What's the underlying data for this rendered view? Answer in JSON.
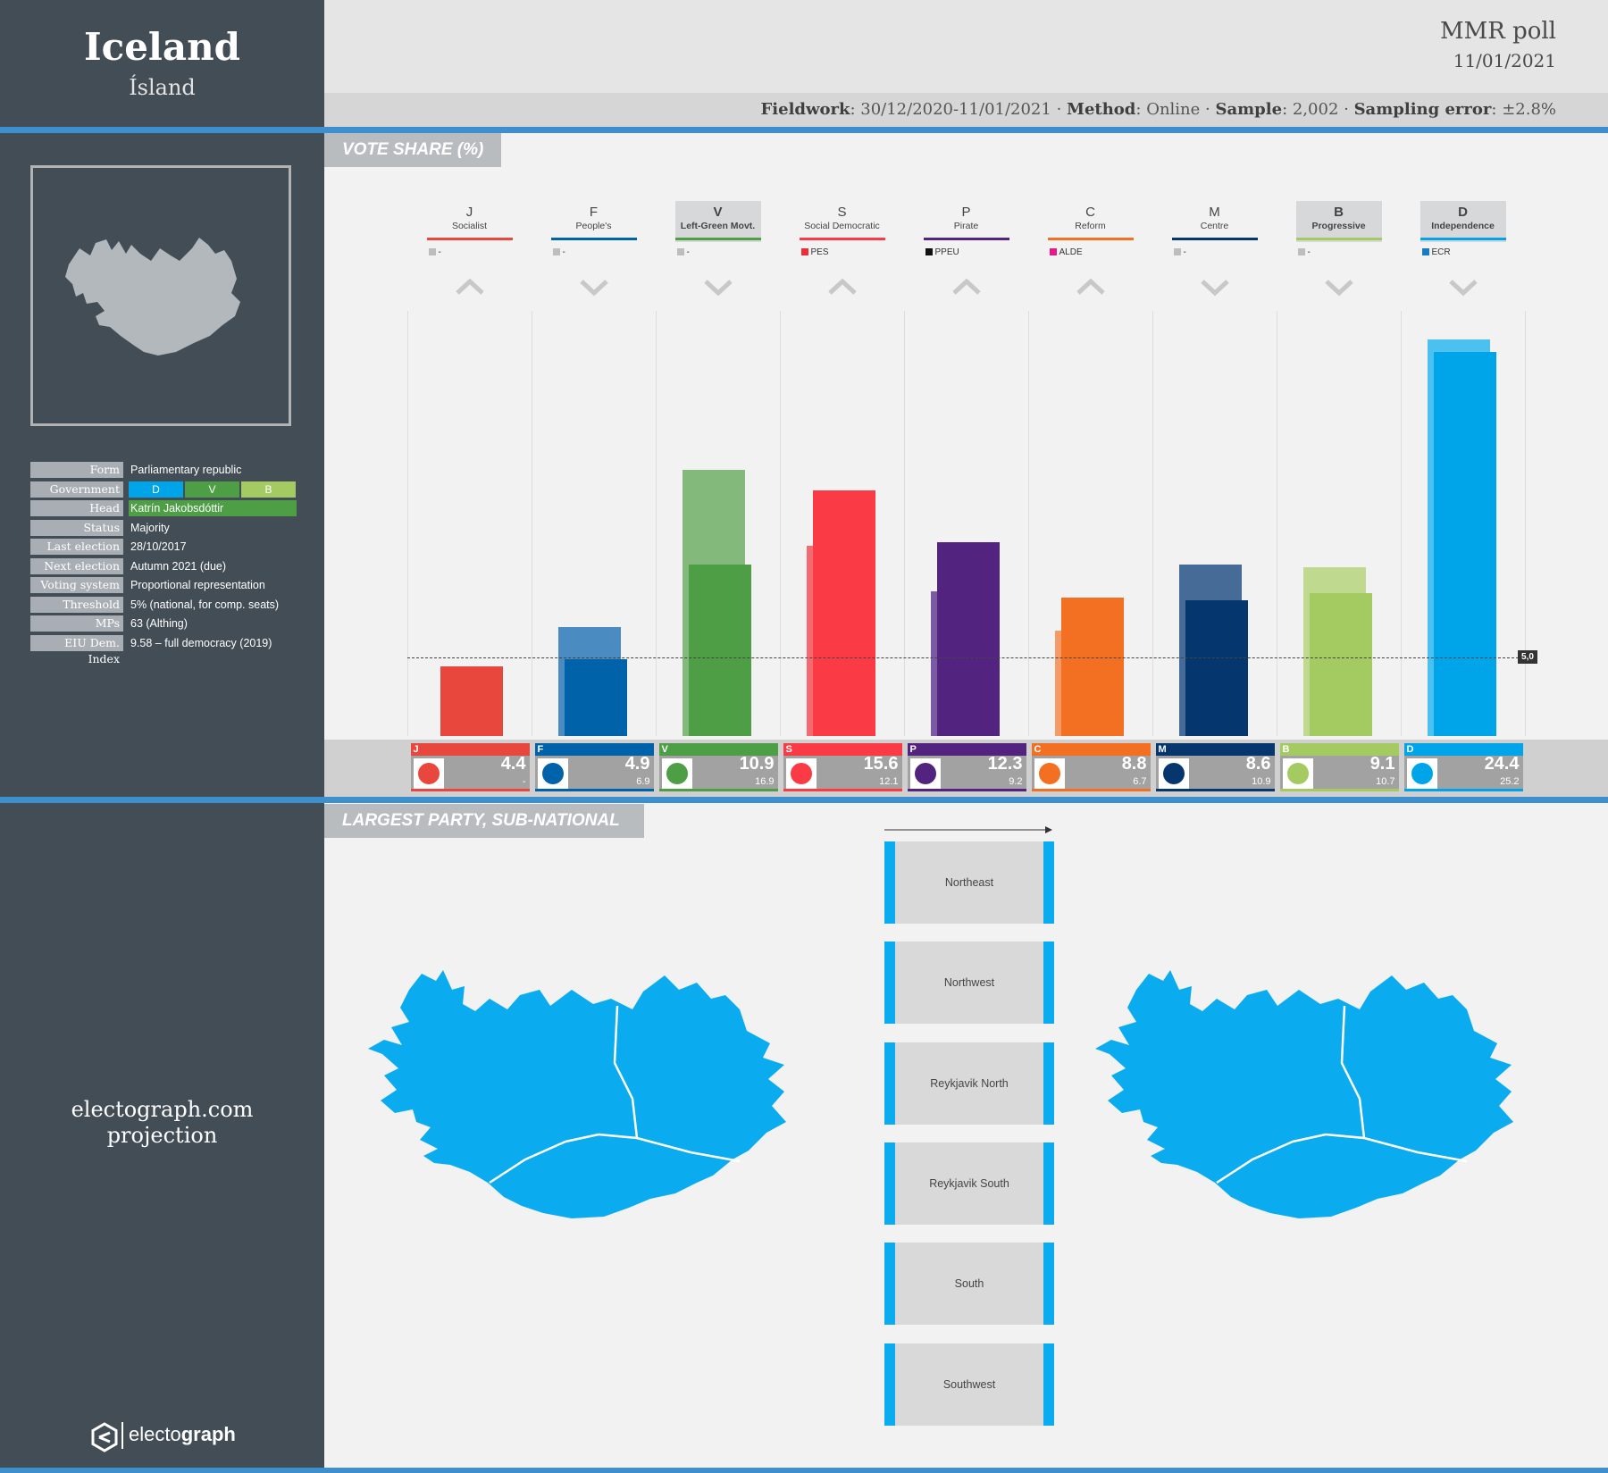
{
  "country": {
    "name": "Iceland",
    "native_name": "Ísland"
  },
  "info": {
    "rows": [
      {
        "key": "Form",
        "value": "Parliamentary republic"
      },
      {
        "key": "Government",
        "value": ""
      },
      {
        "key": "Head",
        "value": "Katrín Jakobsdóttir"
      },
      {
        "key": "Status",
        "value": "Majority"
      },
      {
        "key": "Last election",
        "value": "28/10/2017"
      },
      {
        "key": "Next election",
        "value": "Autumn 2021 (due)"
      },
      {
        "key": "Voting system",
        "value": "Proportional representation"
      },
      {
        "key": "Threshold",
        "value": "5% (national, for comp. seats)"
      },
      {
        "key": "MPs",
        "value": "63 (Althing)"
      },
      {
        "key": "EIU Dem. Index",
        "value": "9.58 – full democracy (2019)"
      }
    ],
    "government_parties": [
      {
        "label": "D",
        "color": "#00a5e9"
      },
      {
        "label": "V",
        "color": "#4e9e45"
      },
      {
        "label": "B",
        "color": "#a4cb62"
      }
    ],
    "head_color": "#4e9e45"
  },
  "footer": {
    "projection_line1": "electograph.com",
    "projection_line2": "projection",
    "brand_light": "electo",
    "brand_bold": "graph"
  },
  "header": {
    "pollster": "MMR",
    "poll_word": "poll",
    "date": "11/01/2021",
    "fieldwork_label": "Fieldwork",
    "fieldwork": "30/12/2020-11/01/2021",
    "method_label": "Method",
    "method": "Online",
    "sample_label": "Sample",
    "sample": "2,002",
    "error_label": "Sampling error",
    "error": "±2.8%"
  },
  "sections": {
    "vote_share": "VOTE SHARE (%)",
    "subnational": "LARGEST PARTY, SUB-NATIONAL"
  },
  "chart_data": {
    "type": "bar",
    "title": "VOTE SHARE (%)",
    "ylim": [
      0,
      27
    ],
    "threshold": {
      "value": 5,
      "label": "5,0"
    },
    "categories": [
      "J",
      "F",
      "V",
      "S",
      "P",
      "C",
      "M",
      "B",
      "D"
    ],
    "series": [
      {
        "name": "previous",
        "values": [
          null,
          6.9,
          16.9,
          12.1,
          9.2,
          6.7,
          10.9,
          10.7,
          25.2
        ]
      },
      {
        "name": "current",
        "values": [
          4.4,
          4.9,
          10.9,
          15.6,
          12.3,
          8.8,
          8.6,
          9.1,
          24.4
        ]
      }
    ],
    "parties": [
      {
        "abbr": "J",
        "name": "Socialist",
        "color": "#e8473d",
        "prev_color": "#ef7a72",
        "eu_group": "-",
        "eu_color": "#bdbdbd",
        "trend": "up",
        "gov": false,
        "value": "4.4",
        "prev": "-"
      },
      {
        "abbr": "F",
        "name": "People's",
        "color": "#0063aa",
        "prev_color": "#4a8bc2",
        "eu_group": "-",
        "eu_color": "#bdbdbd",
        "trend": "down",
        "gov": false,
        "value": "4.9",
        "prev": "6.9"
      },
      {
        "abbr": "V",
        "name": "Left-Green Movt.",
        "color": "#4e9e45",
        "prev_color": "#84b97c",
        "eu_group": "-",
        "eu_color": "#bdbdbd",
        "trend": "down",
        "gov": true,
        "value": "10.9",
        "prev": "16.9"
      },
      {
        "abbr": "S",
        "name": "Social Democratic",
        "color": "#fa3a45",
        "prev_color": "#f46a71",
        "eu_group": "PES",
        "eu_color": "#ef2d36",
        "trend": "up",
        "gov": false,
        "value": "15.6",
        "prev": "12.1"
      },
      {
        "abbr": "P",
        "name": "Pirate",
        "color": "#532380",
        "prev_color": "#7a5aa3",
        "eu_group": "PPEU",
        "eu_color": "#111111",
        "trend": "up",
        "gov": false,
        "value": "12.3",
        "prev": "9.2"
      },
      {
        "abbr": "C",
        "name": "Reform",
        "color": "#f36f21",
        "prev_color": "#f39a66",
        "eu_group": "ALDE",
        "eu_color": "#e5198a",
        "trend": "up",
        "gov": false,
        "value": "8.8",
        "prev": "6.7"
      },
      {
        "abbr": "M",
        "name": "Centre",
        "color": "#05366e",
        "prev_color": "#466b97",
        "eu_group": "-",
        "eu_color": "#bdbdbd",
        "trend": "down",
        "gov": false,
        "value": "8.6",
        "prev": "10.9"
      },
      {
        "abbr": "B",
        "name": "Progressive",
        "color": "#a4cb62",
        "prev_color": "#bfd98f",
        "eu_group": "-",
        "eu_color": "#bdbdbd",
        "trend": "down",
        "gov": true,
        "value": "9.1",
        "prev": "10.7"
      },
      {
        "abbr": "D",
        "name": "Independence",
        "color": "#00a5e9",
        "prev_color": "#4cc0ef",
        "eu_group": "ECR",
        "eu_color": "#1a7bbf",
        "trend": "down",
        "gov": true,
        "value": "24.4",
        "prev": "25.2"
      }
    ]
  },
  "regions": [
    "Northeast",
    "Northwest",
    "Reykjavik North",
    "Reykjavik South",
    "South",
    "Southwest"
  ],
  "map_color": "#0bacef"
}
